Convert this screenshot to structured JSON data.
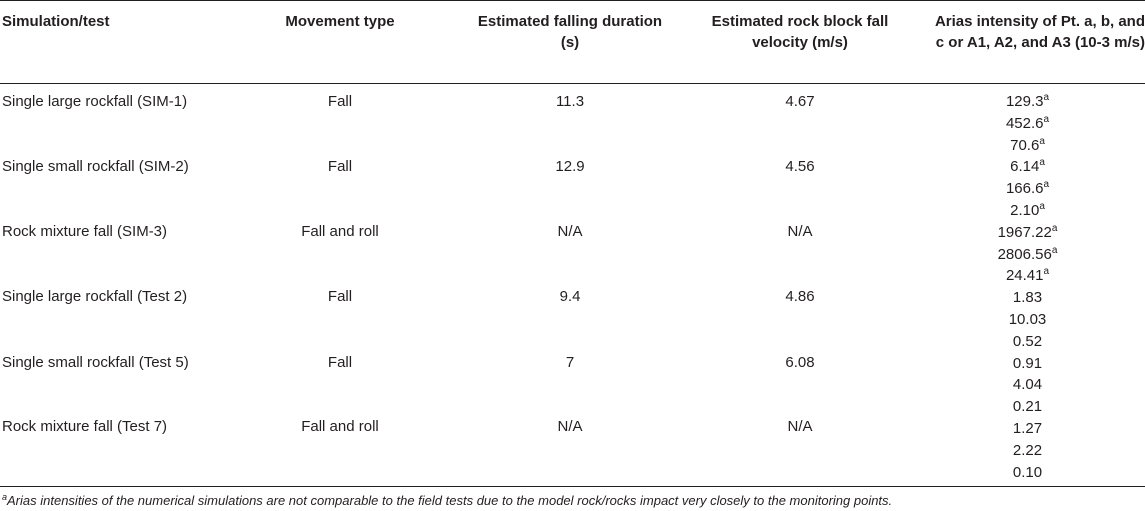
{
  "headers": [
    "Simulation/test",
    "Movement type",
    "Estimated falling duration (s)",
    "Estimated rock block fall velocity (m/s)",
    "Arias intensity of Pt. a, b, and c or A1, A2, and A3 (10-3 m/s)"
  ],
  "rows": [
    {
      "name": "Single large rockfall (SIM-1)",
      "movement": "Fall",
      "duration": "11.3",
      "velocity": "4.67"
    },
    {
      "name": "Single small rockfall (SIM-2)",
      "movement": "Fall",
      "duration": "12.9",
      "velocity": "4.56"
    },
    {
      "name": "Rock mixture fall (SIM-3)",
      "movement": "Fall and roll",
      "duration": "N/A",
      "velocity": "N/A"
    },
    {
      "name": "Single large rockfall (Test 2)",
      "movement": "Fall",
      "duration": "9.4",
      "velocity": "4.86"
    },
    {
      "name": "Single small rockfall (Test 5)",
      "movement": "Fall",
      "duration": "7",
      "velocity": "6.08"
    },
    {
      "name": "Rock mixture fall (Test 7)",
      "movement": "Fall and roll",
      "duration": "N/A",
      "velocity": "N/A"
    }
  ],
  "arias_values": [
    {
      "value": "129.3",
      "note": "a"
    },
    {
      "value": "452.6",
      "note": "a"
    },
    {
      "value": "70.6",
      "note": "a"
    },
    {
      "value": "6.14",
      "note": "a"
    },
    {
      "value": "166.6",
      "note": "a"
    },
    {
      "value": "2.10",
      "note": "a"
    },
    {
      "value": "1967.22",
      "note": "a"
    },
    {
      "value": "2806.56",
      "note": "a"
    },
    {
      "value": "24.41",
      "note": "a"
    },
    {
      "value": "1.83",
      "note": ""
    },
    {
      "value": "10.03",
      "note": ""
    },
    {
      "value": "0.52",
      "note": ""
    },
    {
      "value": "0.91",
      "note": ""
    },
    {
      "value": "4.04",
      "note": ""
    },
    {
      "value": "0.21",
      "note": ""
    },
    {
      "value": "1.27",
      "note": ""
    },
    {
      "value": "2.22",
      "note": ""
    },
    {
      "value": "0.10",
      "note": ""
    }
  ],
  "footnote": {
    "marker": "a",
    "text": "Arias intensities of the numerical simulations are not comparable to the field tests due to the model rock/rocks impact very closely to the monitoring points."
  }
}
